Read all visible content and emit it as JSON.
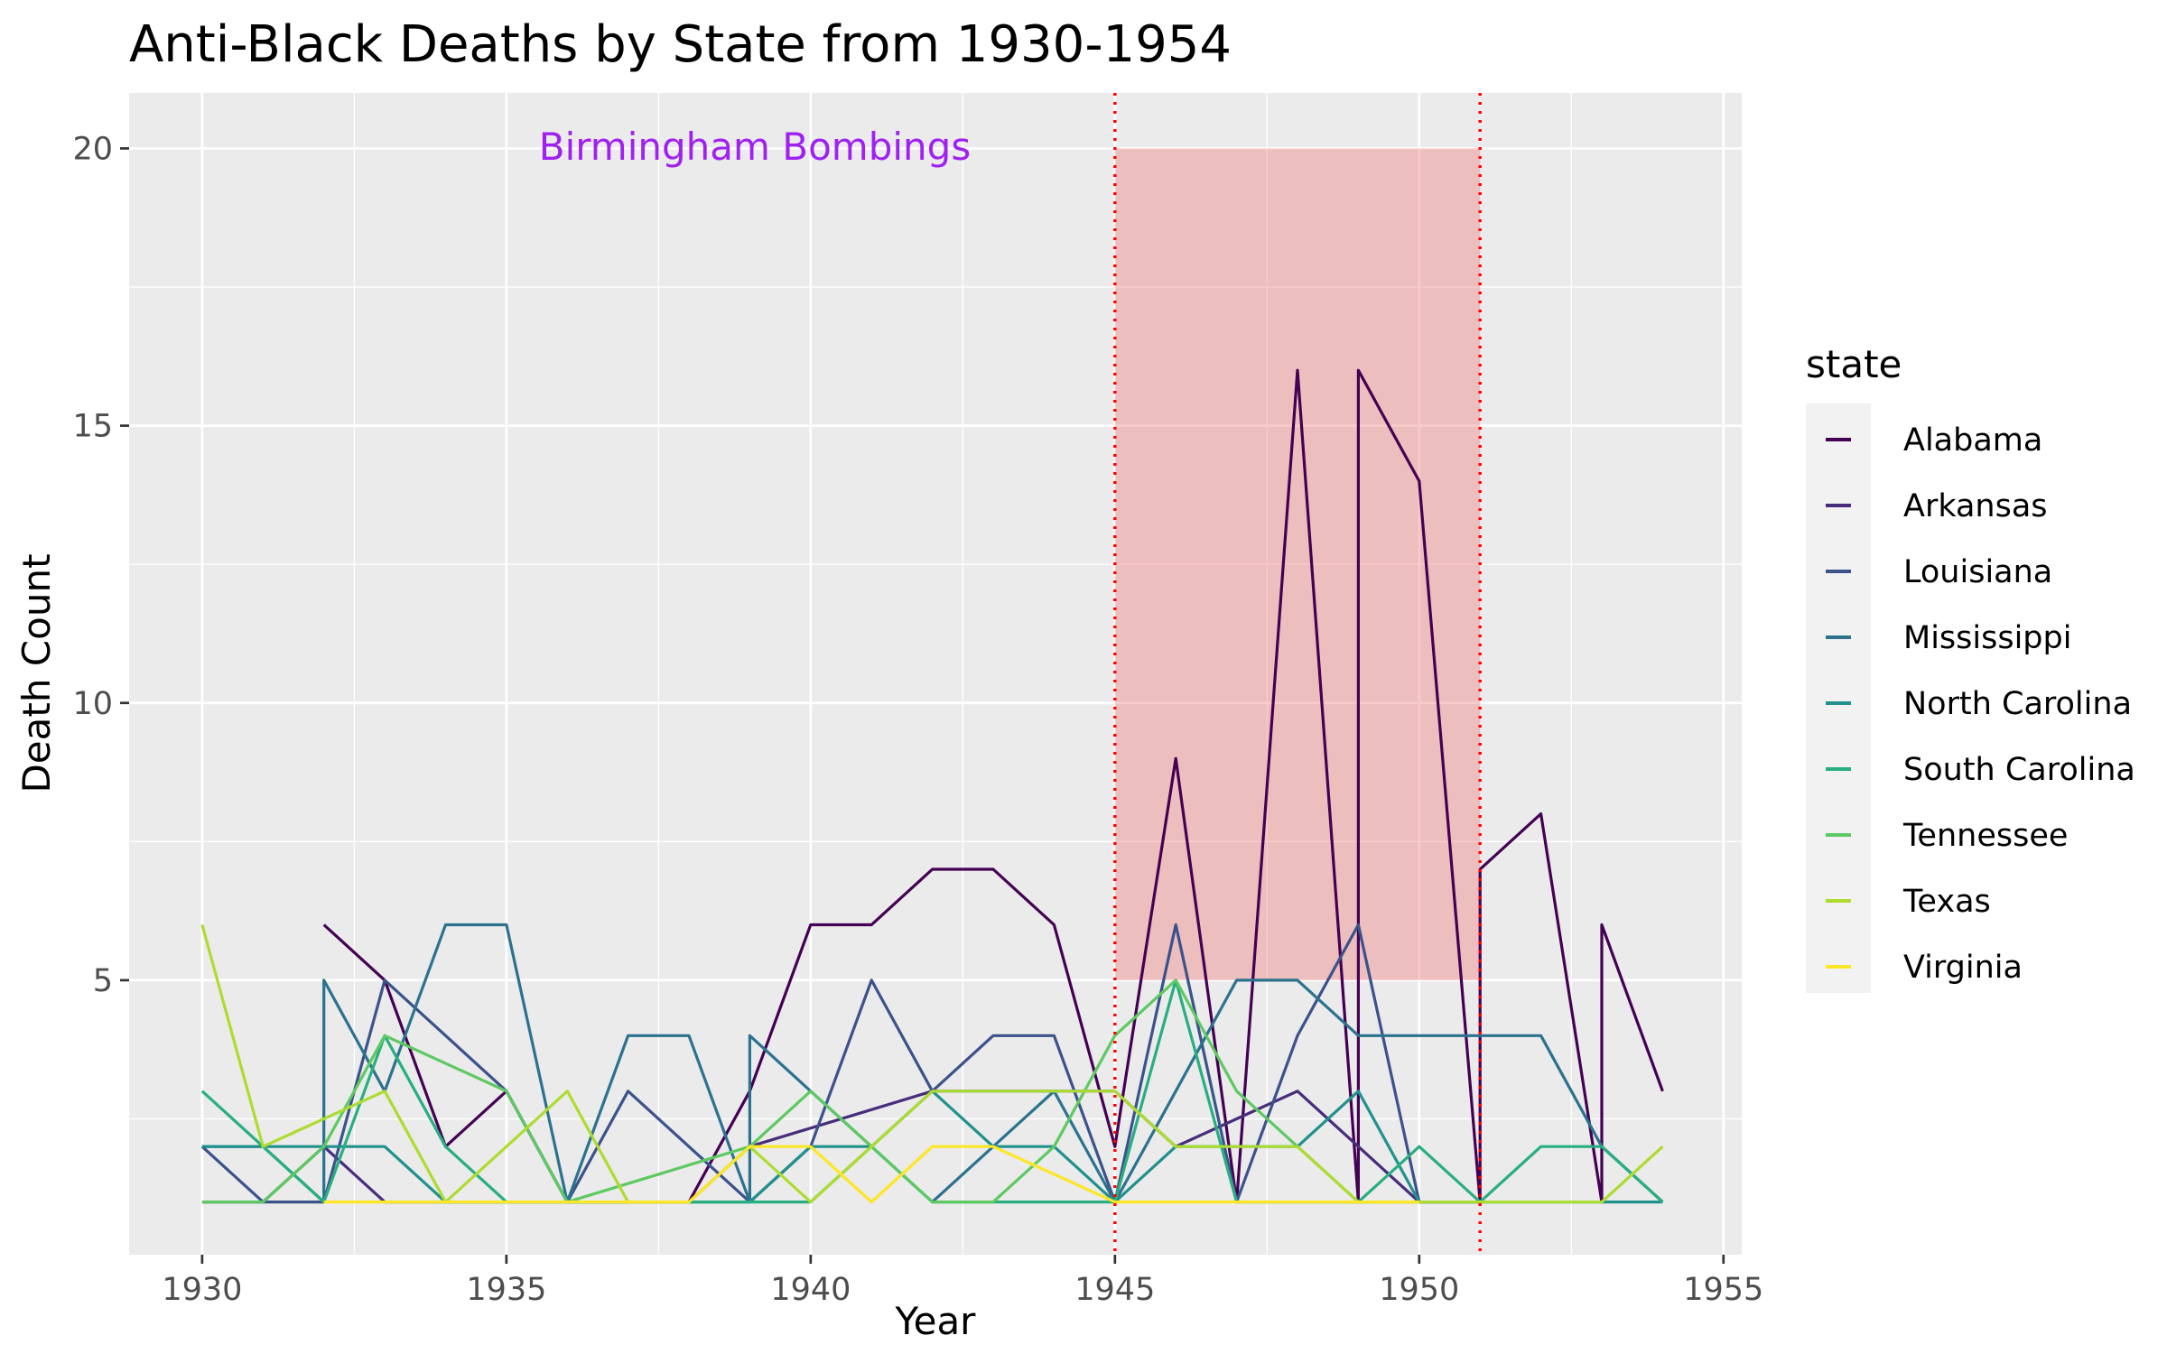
{
  "chart_data": {
    "type": "line",
    "title": "Anti-Black Deaths by State from 1930-1954",
    "xlabel": "Year",
    "ylabel": "Death Count",
    "xlim": [
      1928.8,
      1955.3
    ],
    "ylim": [
      0.05,
      21
    ],
    "x_ticks": [
      1930,
      1935,
      1940,
      1945,
      1950,
      1955
    ],
    "y_ticks": [
      5,
      10,
      15,
      20
    ],
    "grid": true,
    "legend_title": "state",
    "legend_position": "right",
    "annotation": {
      "text": "Birmingham Bombings",
      "x": 1939,
      "y": 20,
      "color": "#a020f0"
    },
    "highlight_rect": {
      "x": [
        1945,
        1951
      ],
      "y": [
        5,
        20
      ],
      "color": "#f08080"
    },
    "vlines": [
      1945,
      1951
    ],
    "vline_color": "#ff0000",
    "series": [
      {
        "name": "Alabama",
        "color": "#440154",
        "points": [
          [
            1932,
            6
          ],
          [
            1933,
            5
          ],
          [
            1934,
            2
          ],
          [
            1935,
            3
          ],
          [
            1936,
            1
          ],
          [
            1937,
            1
          ],
          [
            1938,
            1
          ],
          [
            1939,
            3
          ],
          [
            1940,
            6
          ],
          [
            1941,
            6
          ],
          [
            1942,
            7
          ],
          [
            1943,
            7
          ],
          [
            1944,
            6
          ],
          [
            1945,
            2
          ],
          [
            1946,
            9
          ],
          [
            1947,
            1
          ],
          [
            1948,
            16
          ],
          [
            1949,
            1
          ],
          [
            1949,
            16
          ],
          [
            1950,
            14
          ],
          [
            1951,
            1
          ],
          [
            1951,
            7
          ],
          [
            1952,
            8
          ],
          [
            1953,
            1
          ],
          [
            1953,
            6
          ],
          [
            1954,
            3
          ]
        ]
      },
      {
        "name": "Arkansas",
        "color": "#472d7b",
        "points": [
          [
            1930,
            1
          ],
          [
            1931,
            1
          ],
          [
            1932,
            2
          ],
          [
            1933,
            1
          ],
          [
            1934,
            1
          ],
          [
            1935,
            1
          ],
          [
            1936,
            1
          ],
          [
            1937,
            1
          ],
          [
            1938,
            1
          ],
          [
            1939,
            2
          ],
          [
            1942,
            3
          ],
          [
            1945,
            3
          ],
          [
            1946,
            2
          ],
          [
            1948,
            3
          ],
          [
            1949,
            2
          ],
          [
            1950,
            1
          ],
          [
            1951,
            1
          ]
        ]
      },
      {
        "name": "Louisiana",
        "color": "#3b528b",
        "points": [
          [
            1930,
            2
          ],
          [
            1931,
            1
          ],
          [
            1932,
            1
          ],
          [
            1933,
            5
          ],
          [
            1934,
            4
          ],
          [
            1935,
            3
          ],
          [
            1936,
            1
          ],
          [
            1937,
            3
          ],
          [
            1938,
            2
          ],
          [
            1939,
            1
          ],
          [
            1940,
            2
          ],
          [
            1941,
            5
          ],
          [
            1942,
            3
          ],
          [
            1943,
            4
          ],
          [
            1944,
            4
          ],
          [
            1945,
            1
          ],
          [
            1946,
            6
          ],
          [
            1947,
            1
          ],
          [
            1948,
            4
          ],
          [
            1949,
            6
          ],
          [
            1950,
            1
          ]
        ]
      },
      {
        "name": "Mississippi",
        "color": "#2c728e",
        "points": [
          [
            1930,
            2
          ],
          [
            1931,
            2
          ],
          [
            1932,
            1
          ],
          [
            1932,
            5
          ],
          [
            1933,
            3
          ],
          [
            1934,
            6
          ],
          [
            1935,
            6
          ],
          [
            1936,
            1
          ],
          [
            1937,
            4
          ],
          [
            1938,
            4
          ],
          [
            1939,
            1
          ],
          [
            1939,
            4
          ],
          [
            1940,
            3
          ],
          [
            1941,
            2
          ],
          [
            1942,
            1
          ],
          [
            1943,
            2
          ],
          [
            1944,
            3
          ],
          [
            1945,
            1
          ],
          [
            1946,
            3
          ],
          [
            1947,
            5
          ],
          [
            1948,
            5
          ],
          [
            1949,
            4
          ],
          [
            1950,
            4
          ],
          [
            1951,
            4
          ],
          [
            1952,
            4
          ],
          [
            1953,
            2
          ],
          [
            1954,
            1
          ]
        ]
      },
      {
        "name": "North Carolina",
        "color": "#21918c",
        "points": [
          [
            1930,
            2
          ],
          [
            1931,
            2
          ],
          [
            1932,
            2
          ],
          [
            1933,
            2
          ],
          [
            1934,
            1
          ],
          [
            1935,
            1
          ],
          [
            1936,
            1
          ],
          [
            1937,
            1
          ],
          [
            1938,
            1
          ],
          [
            1939,
            1
          ],
          [
            1940,
            2
          ],
          [
            1941,
            2
          ],
          [
            1942,
            3
          ],
          [
            1943,
            2
          ],
          [
            1944,
            2
          ],
          [
            1945,
            1
          ],
          [
            1946,
            2
          ],
          [
            1947,
            2
          ],
          [
            1948,
            2
          ],
          [
            1949,
            3
          ],
          [
            1950,
            1
          ],
          [
            1951,
            1
          ],
          [
            1952,
            1
          ],
          [
            1953,
            1
          ],
          [
            1954,
            1
          ]
        ]
      },
      {
        "name": "South Carolina",
        "color": "#28ae80",
        "points": [
          [
            1930,
            3
          ],
          [
            1931,
            2
          ],
          [
            1932,
            1
          ],
          [
            1933,
            4
          ],
          [
            1934,
            2
          ],
          [
            1935,
            1
          ],
          [
            1936,
            1
          ],
          [
            1937,
            1
          ],
          [
            1938,
            1
          ],
          [
            1939,
            1
          ],
          [
            1940,
            1
          ],
          [
            1941,
            2
          ],
          [
            1942,
            1
          ],
          [
            1943,
            1
          ],
          [
            1944,
            1
          ],
          [
            1945,
            1
          ],
          [
            1946,
            5
          ],
          [
            1947,
            1
          ],
          [
            1948,
            1
          ],
          [
            1949,
            1
          ],
          [
            1950,
            2
          ],
          [
            1951,
            1
          ],
          [
            1952,
            2
          ],
          [
            1953,
            2
          ],
          [
            1954,
            1
          ]
        ]
      },
      {
        "name": "Tennessee",
        "color": "#5ec962",
        "points": [
          [
            1930,
            1
          ],
          [
            1931,
            1
          ],
          [
            1932,
            2
          ],
          [
            1933,
            4
          ],
          [
            1935,
            3
          ],
          [
            1936,
            1
          ],
          [
            1939,
            2
          ],
          [
            1940,
            3
          ],
          [
            1941,
            2
          ],
          [
            1942,
            1
          ],
          [
            1943,
            1
          ],
          [
            1944,
            2
          ],
          [
            1945,
            4
          ],
          [
            1946,
            5
          ],
          [
            1947,
            3
          ],
          [
            1948,
            2
          ],
          [
            1949,
            1
          ],
          [
            1950,
            1
          ]
        ]
      },
      {
        "name": "Texas",
        "color": "#addc30",
        "points": [
          [
            1930,
            6
          ],
          [
            1931,
            2
          ],
          [
            1933,
            3
          ],
          [
            1934,
            1
          ],
          [
            1936,
            3
          ],
          [
            1937,
            1
          ],
          [
            1938,
            1
          ],
          [
            1939,
            2
          ],
          [
            1940,
            1
          ],
          [
            1941,
            2
          ],
          [
            1942,
            3
          ],
          [
            1943,
            3
          ],
          [
            1944,
            3
          ],
          [
            1945,
            3
          ],
          [
            1946,
            2
          ],
          [
            1947,
            2
          ],
          [
            1948,
            2
          ],
          [
            1949,
            1
          ],
          [
            1950,
            1
          ],
          [
            1951,
            1
          ],
          [
            1952,
            1
          ],
          [
            1953,
            1
          ],
          [
            1954,
            2
          ]
        ]
      },
      {
        "name": "Virginia",
        "color": "#fde725",
        "points": [
          [
            1932,
            1
          ],
          [
            1933,
            1
          ],
          [
            1934,
            1
          ],
          [
            1935,
            1
          ],
          [
            1936,
            1
          ],
          [
            1937,
            1
          ],
          [
            1938,
            1
          ],
          [
            1939,
            2
          ],
          [
            1940,
            2
          ],
          [
            1941,
            1
          ],
          [
            1942,
            2
          ],
          [
            1943,
            2
          ],
          [
            1945,
            1
          ],
          [
            1946,
            1
          ],
          [
            1947,
            1
          ],
          [
            1948,
            1
          ],
          [
            1949,
            1
          ],
          [
            1950,
            1
          ]
        ]
      }
    ]
  }
}
